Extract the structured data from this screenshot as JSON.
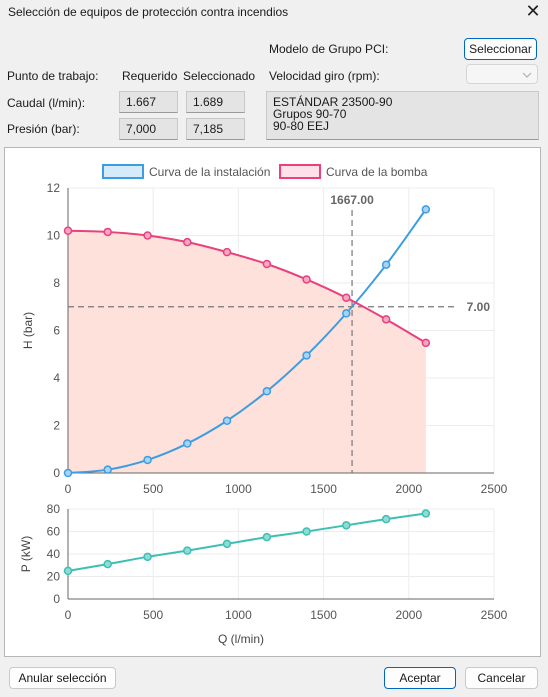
{
  "window": {
    "title": "Selección de equipos de protección contra incendios",
    "close_glyph": "✕"
  },
  "form": {
    "modelo_label": "Modelo de Grupo PCI:",
    "seleccionar_label": "Seleccionar",
    "velocidad_label": "Velocidad giro (rpm):",
    "velocidad_value": "",
    "punto_label": "Punto de trabajo:",
    "requerido_label": "Requerido",
    "seleccionado_label": "Seleccionado",
    "caudal_label": "Caudal (l/min):",
    "caudal_requerido": "1.667",
    "caudal_seleccionado": "1.689",
    "presion_label": "Presión (bar):",
    "presion_requerido": "7,000",
    "presion_seleccionado": "7,185",
    "modelo_lines": [
      "ESTÁNDAR 23500-90",
      "Grupos 90-70",
      "90-80 EEJ"
    ]
  },
  "footer": {
    "anular_label": "Anular selección",
    "aceptar_label": "Aceptar",
    "cancelar_label": "Cancelar"
  },
  "colors": {
    "instalacion": "#3d9de1",
    "bomba": "#e8417d",
    "bomba_fill": "#ffe1dc",
    "potencia": "#3dbfb4"
  },
  "chart_data": [
    {
      "type": "line",
      "ylabel": "H (bar)",
      "xlim": [
        0,
        2500
      ],
      "ylim": [
        0,
        12
      ],
      "xticks": [
        0,
        500,
        1000,
        1500,
        2000,
        2500
      ],
      "yticks": [
        0,
        2,
        4,
        6,
        8,
        10,
        12
      ],
      "legend_position": "top",
      "series": [
        {
          "name": "Curva de la instalación",
          "color": "#3d9de1",
          "x": [
            0,
            233,
            467,
            700,
            933,
            1167,
            1400,
            1633,
            1867,
            2100
          ],
          "y": [
            0.0,
            0.14,
            0.55,
            1.24,
            2.2,
            3.44,
            4.95,
            6.72,
            8.77,
            11.1
          ]
        },
        {
          "name": "Curva de la bomba",
          "color": "#e8417d",
          "fill": "#ffe1dc",
          "x": [
            0,
            233,
            467,
            700,
            933,
            1167,
            1400,
            1633,
            1867,
            2100
          ],
          "y": [
            10.2,
            10.15,
            10.0,
            9.72,
            9.3,
            8.8,
            8.15,
            7.38,
            6.47,
            5.48
          ]
        }
      ],
      "annotations": [
        {
          "axis": "x",
          "value": 1667,
          "label": "1667.00"
        },
        {
          "axis": "y",
          "value": 7.0,
          "label": "7.00"
        }
      ]
    },
    {
      "type": "line",
      "xlabel": "Q (l/min)",
      "ylabel": "P (kW)",
      "xlim": [
        0,
        2500
      ],
      "ylim": [
        0,
        80
      ],
      "xticks": [
        0,
        500,
        1000,
        1500,
        2000,
        2500
      ],
      "yticks": [
        0,
        20,
        40,
        60,
        80
      ],
      "series": [
        {
          "color": "#3dbfb4",
          "x": [
            0,
            233,
            467,
            700,
            933,
            1167,
            1400,
            1633,
            1867,
            2100
          ],
          "y": [
            25,
            31,
            37.5,
            43,
            49,
            55,
            60,
            65.5,
            71,
            76
          ]
        }
      ]
    }
  ]
}
